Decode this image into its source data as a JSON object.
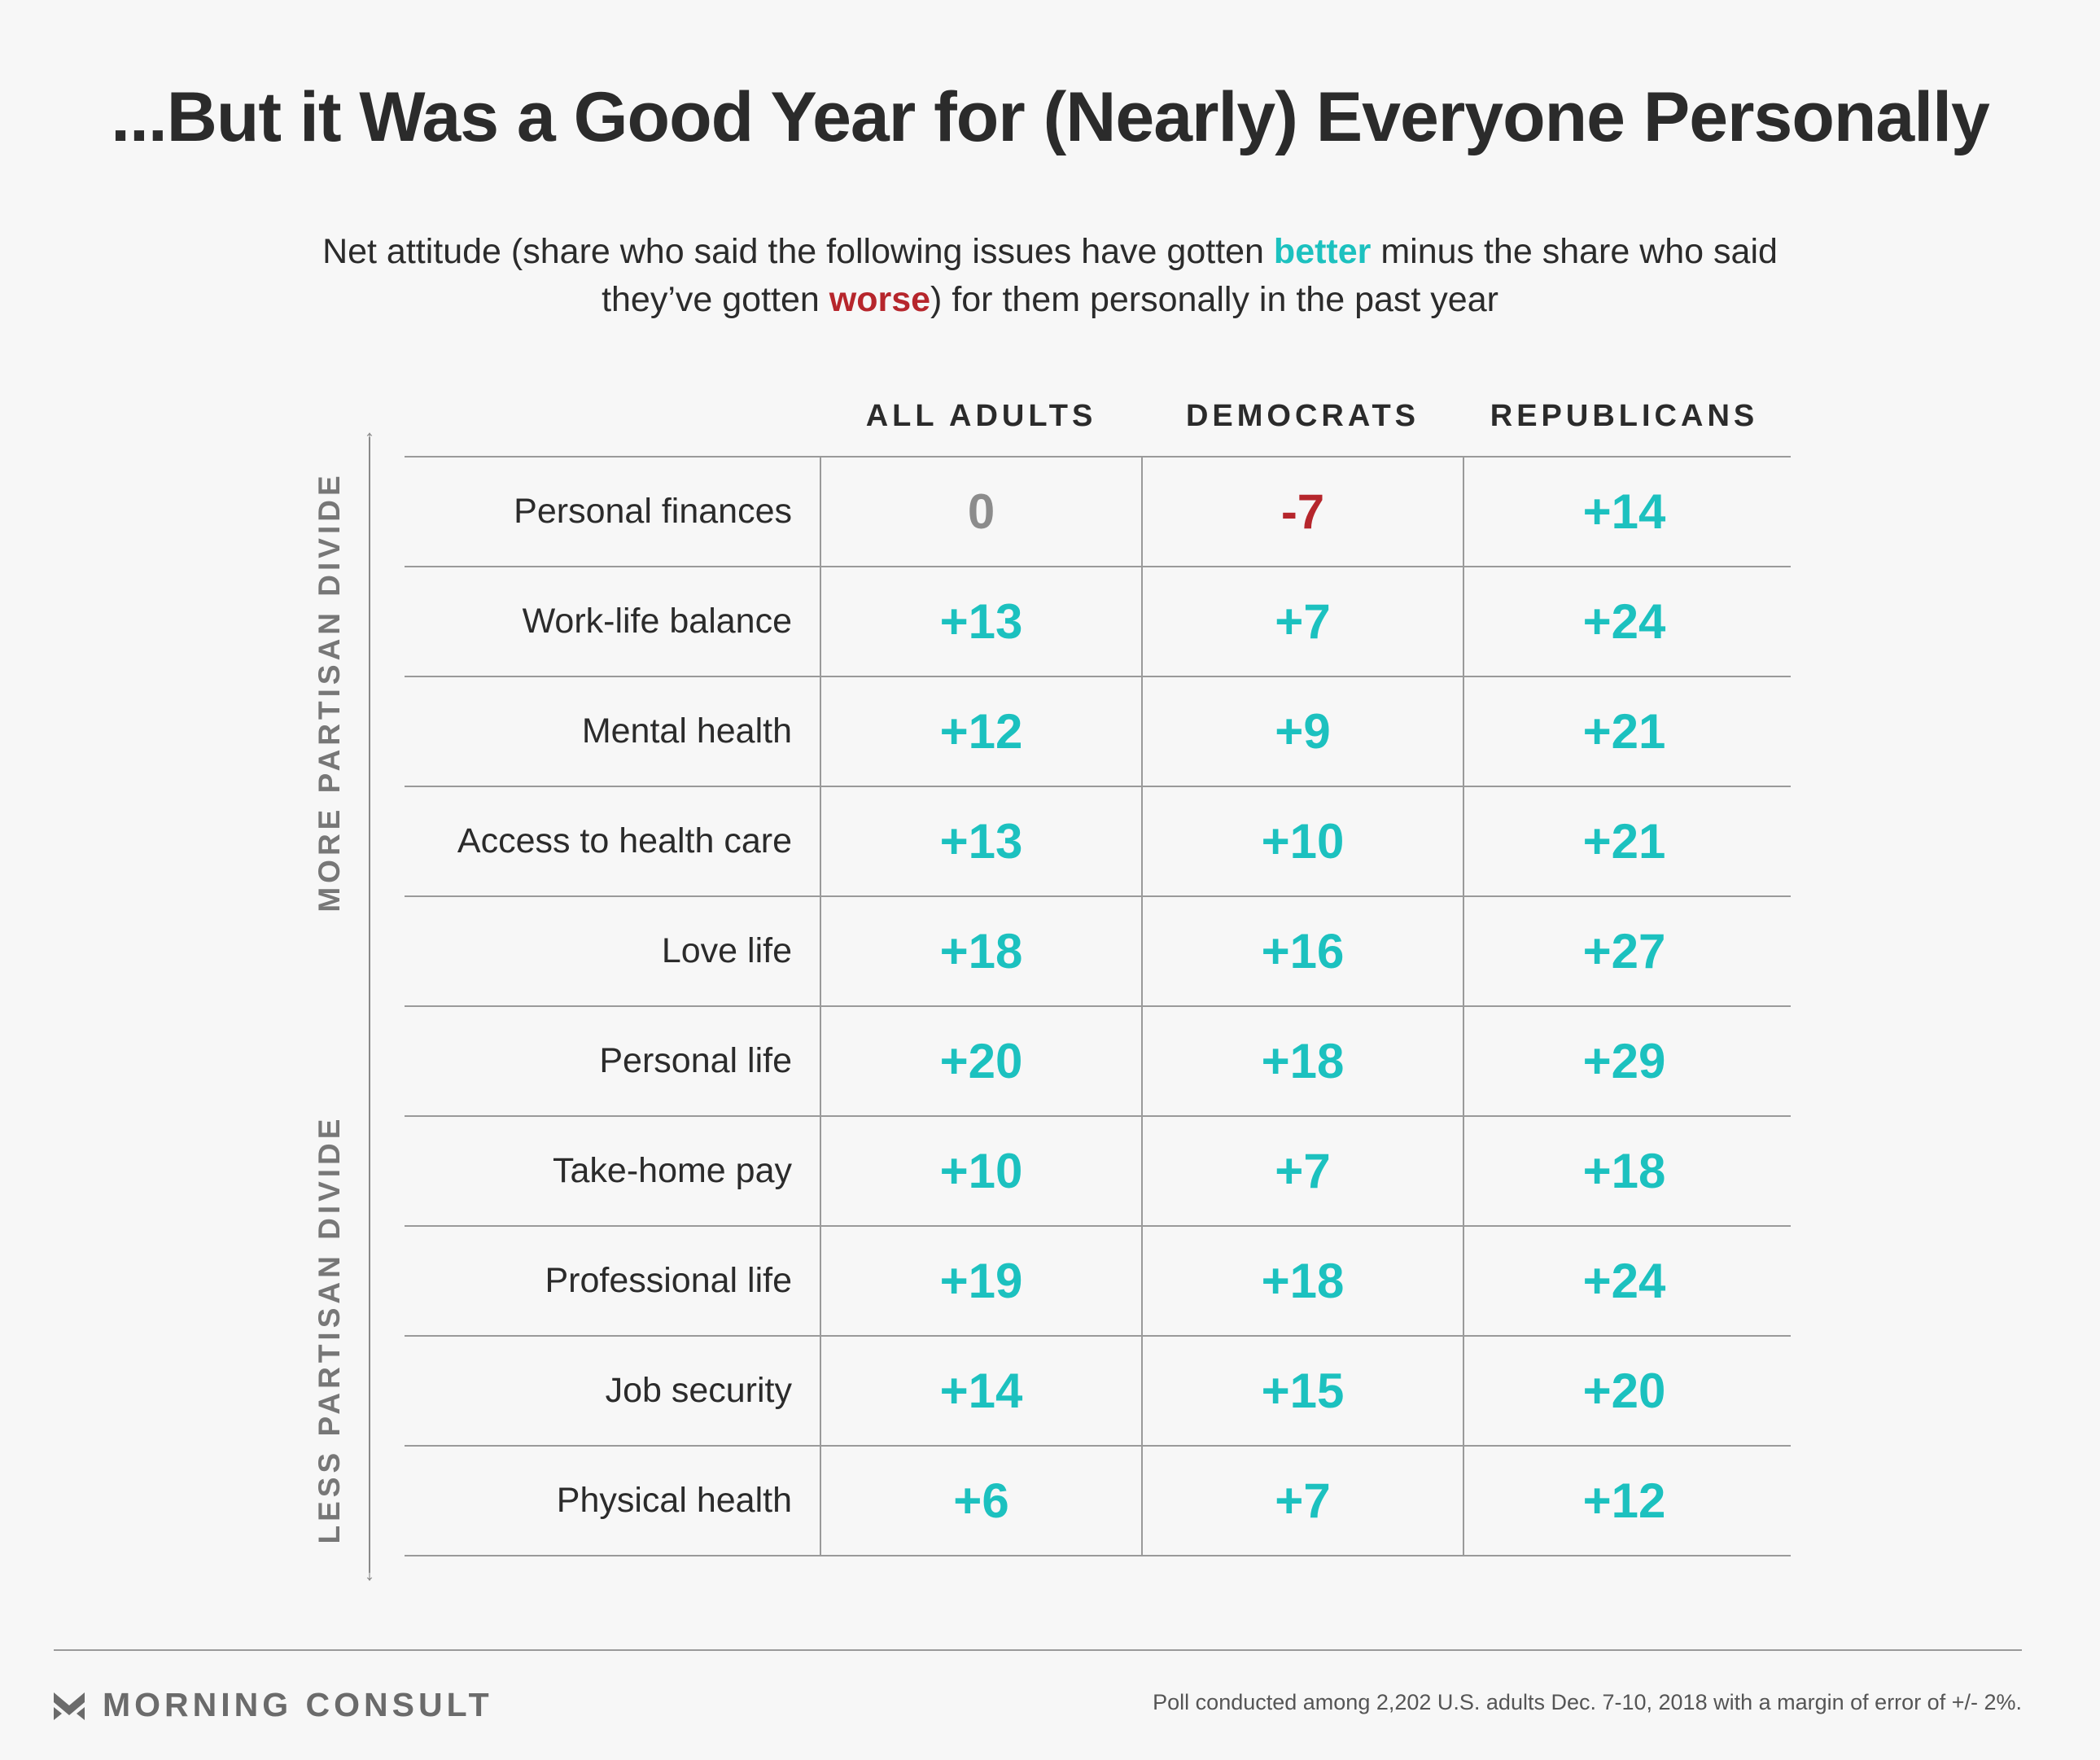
{
  "title": "...But it Was a Good Year for (Nearly) Everyone Personally",
  "subtitle": {
    "part1": "Net attitude (share who said the following issues have gotten ",
    "better": "better",
    "part2": " minus the share who said they’ve gotten ",
    "worse": "worse",
    "part3": ") for them personally in the past year"
  },
  "side_labels": {
    "top": "MORE PARTISAN DIVIDE",
    "bottom": "LESS PARTISAN DIVIDE"
  },
  "colors": {
    "positive": "#1cc1bf",
    "negative": "#b6262c",
    "zero": "#8c8c8c"
  },
  "chart_data": {
    "type": "table",
    "title": "...But it Was a Good Year for (Nearly) Everyone Personally",
    "columns": [
      "ALL ADULTS",
      "DEMOCRATS",
      "REPUBLICANS"
    ],
    "rows": [
      {
        "label": "Personal finances",
        "values": [
          "0",
          "-7",
          "+14"
        ]
      },
      {
        "label": "Work-life balance",
        "values": [
          "+13",
          "+7",
          "+24"
        ]
      },
      {
        "label": "Mental health",
        "values": [
          "+12",
          "+9",
          "+21"
        ]
      },
      {
        "label": "Access to health care",
        "values": [
          "+13",
          "+10",
          "+21"
        ]
      },
      {
        "label": "Love life",
        "values": [
          "+18",
          "+16",
          "+27"
        ]
      },
      {
        "label": "Personal life",
        "values": [
          "+20",
          "+18",
          "+29"
        ]
      },
      {
        "label": "Take-home pay",
        "values": [
          "+10",
          "+7",
          "+18"
        ]
      },
      {
        "label": "Professional life",
        "values": [
          "+19",
          "+18",
          "+24"
        ]
      },
      {
        "label": "Job security",
        "values": [
          "+14",
          "+15",
          "+20"
        ]
      },
      {
        "label": "Physical health",
        "values": [
          "+6",
          "+7",
          "+12"
        ]
      }
    ]
  },
  "footer": {
    "brand": "MORNING CONSULT",
    "note": "Poll conducted among 2,202 U.S. adults Dec. 7-10, 2018 with a margin of error of +/- 2%."
  }
}
